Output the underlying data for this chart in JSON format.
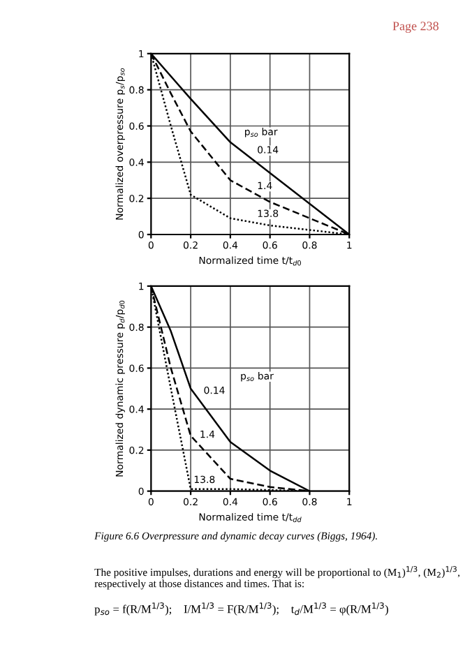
{
  "chart_data": [
    {
      "type": "line",
      "xlabel": "Normalized time t/t$_{d0}$",
      "ylabel": "Normalized overpressure p$_{s}$/p$_{so}$",
      "xlim": [
        0,
        1
      ],
      "ylim": [
        0,
        1
      ],
      "xticks": [
        0,
        0.2,
        0.4,
        0.6,
        0.8,
        1
      ],
      "yticks": [
        0,
        0.2,
        0.4,
        0.6,
        0.8,
        1
      ],
      "grid": true,
      "legend": false,
      "marker": "none",
      "legend_title": "p$_{so}$ bar",
      "series": [
        {
          "name": "0.14",
          "color": "#000000",
          "line_style": "solid",
          "x": [
            0,
            0.2,
            0.4,
            1
          ],
          "values": [
            1,
            0.75,
            0.51,
            0
          ]
        },
        {
          "name": "1.4",
          "color": "#000000",
          "line_style": "dashed",
          "x": [
            0,
            0.1,
            0.2,
            0.4,
            0.6,
            1
          ],
          "values": [
            1,
            0.78,
            0.57,
            0.3,
            0.18,
            0
          ]
        },
        {
          "name": "13.8",
          "color": "#000000",
          "line_style": "dotted",
          "x": [
            0,
            0.1,
            0.2,
            0.4,
            0.6,
            1
          ],
          "values": [
            1,
            0.6,
            0.22,
            0.09,
            0.05,
            0
          ]
        }
      ],
      "annotations": [
        "Page 238"
      ]
    },
    {
      "type": "line",
      "xlabel": "Normalized time t/t$_{dd}$",
      "ylabel": "Normalized dynamic pressure p$_{d}$/p$_{d0}$",
      "xlim": [
        0,
        1
      ],
      "ylim": [
        0,
        1
      ],
      "xticks": [
        0,
        0.2,
        0.4,
        0.6,
        0.8,
        1
      ],
      "yticks": [
        0,
        0.2,
        0.4,
        0.6,
        0.8,
        1
      ],
      "grid": true,
      "legend": false,
      "marker": "none",
      "legend_title": "p$_{so}$ bar",
      "series": [
        {
          "name": "0.14",
          "color": "#000000",
          "line_style": "solid",
          "x": [
            0,
            0.1,
            0.2,
            0.4,
            0.6,
            0.8
          ],
          "values": [
            1,
            0.78,
            0.5,
            0.24,
            0.1,
            0
          ]
        },
        {
          "name": "1.4",
          "color": "#000000",
          "line_style": "dashed",
          "x": [
            0,
            0.1,
            0.2,
            0.4,
            0.6,
            0.8
          ],
          "values": [
            1,
            0.6,
            0.27,
            0.06,
            0.02,
            0
          ]
        },
        {
          "name": "13.8",
          "color": "#000000",
          "line_style": "dotted",
          "x": [
            0,
            0.1,
            0.2,
            0.4,
            0.8
          ],
          "values": [
            1,
            0.5,
            0.01,
            0.01,
            0
          ]
        }
      ],
      "annotations": [
        "Figure 6.6 Overpressure and dynamic decay curves (Biggs, 1964).",
        "The positive impulses, durations and energy will be proportional to (M$_{1}$)$^{1/3}$, (M$_{2}$)$^{1/3}$, respectively at those distances and times. That is:",
        "p$_{so}$ = f(R/M$^{1/3}$);    I/M$^{1/3}$ = F(R/M$^{1/3}$);    t$_{d}$/M$^{1/3}$ = φ(R/M$^{1/3}$)"
      ]
    }
  ]
}
